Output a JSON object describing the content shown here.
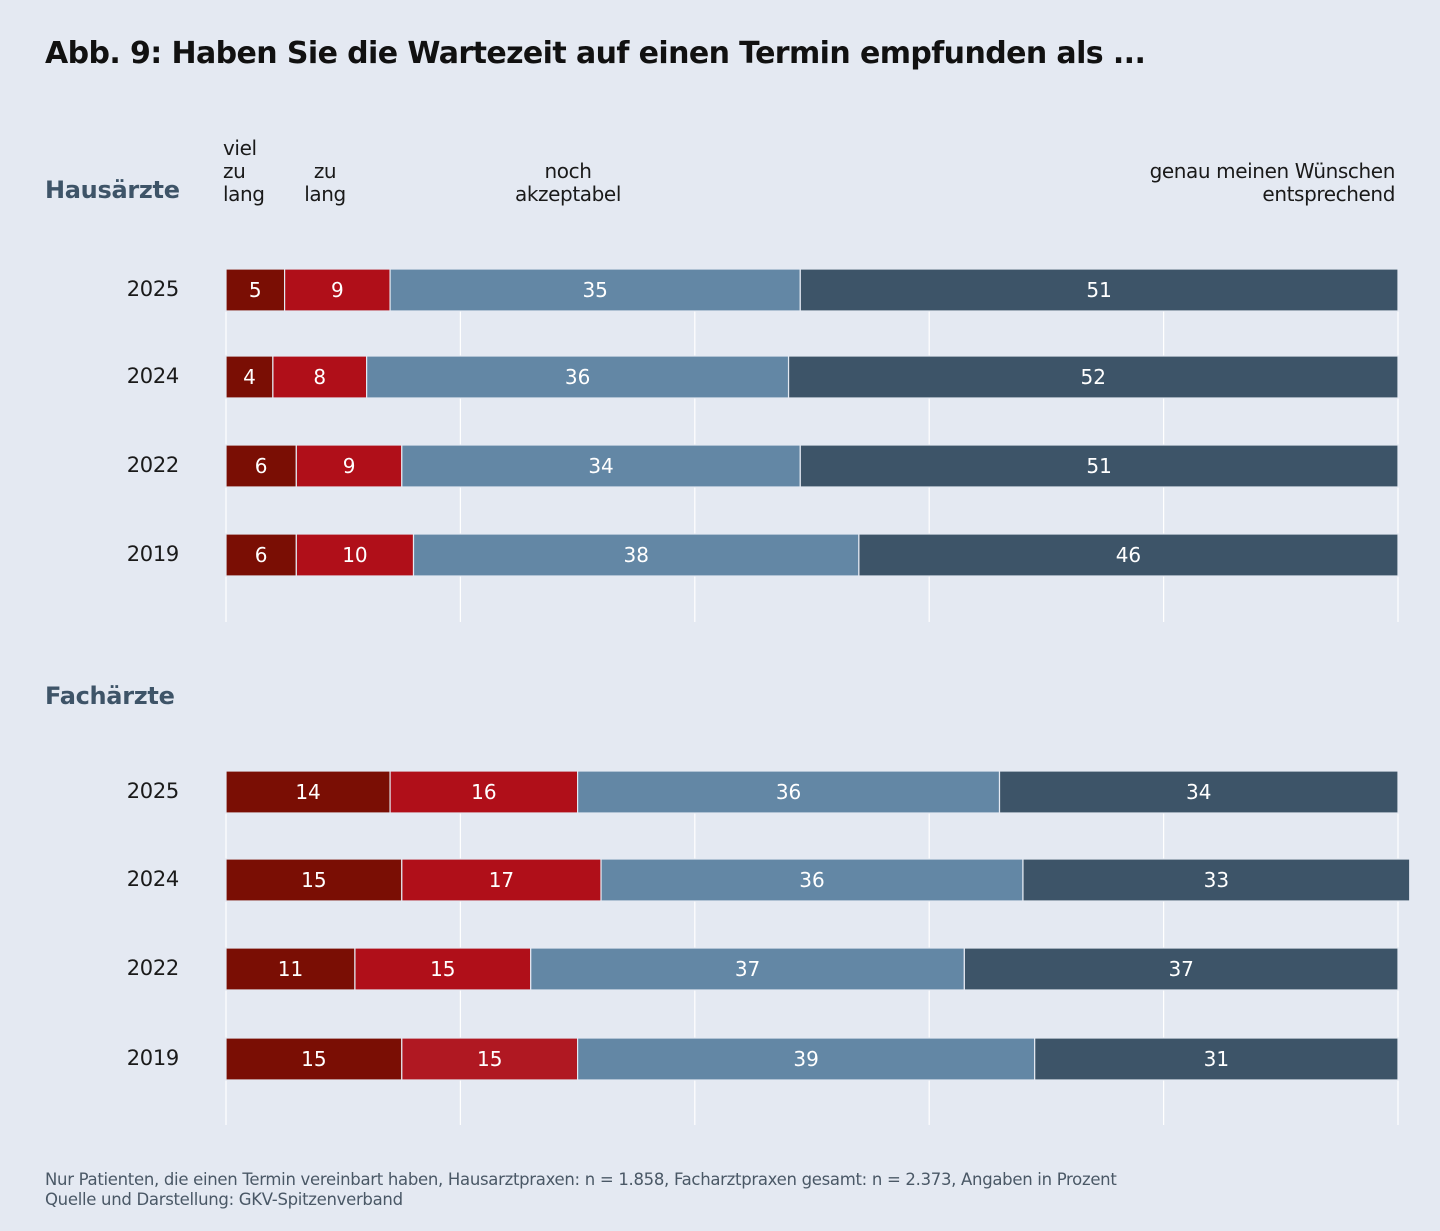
{
  "title": "Abb. 9: Haben Sie die Wartezeit auf einen Termin empfunden als ...",
  "legend_labels": [
    {
      "key": "viel_zu_lang",
      "lines": [
        "viel",
        "zu",
        "lang"
      ]
    },
    {
      "key": "zu_lang",
      "lines": [
        "zu",
        "lang"
      ]
    },
    {
      "key": "noch_akzeptabel",
      "lines": [
        "noch",
        "akzeptabel"
      ]
    },
    {
      "key": "genau",
      "lines": [
        "genau meinen Wünschen",
        "entsprechend"
      ]
    }
  ],
  "footnote": {
    "line1": "Nur Patienten, die einen Termin vereinbart haben, Hausarztpraxen: n = 1.858, Facharztpraxen gesamt: n = 2.373, Angaben in Prozent",
    "line2": "Quelle und Darstellung: GKV-Spitzenverband"
  },
  "colors": {
    "viel_zu_lang": "#7a0e04",
    "zu_lang": "#b00f19",
    "zu_lang_2019_fach": "#b01822",
    "noch_akzeptabel": "#6387a5",
    "genau": "#3d5468",
    "gridline": "#ffffff",
    "background": "#e4e9f2",
    "group_label": "#3e5468"
  },
  "chart_data": {
    "type": "bar",
    "orientation": "horizontal",
    "stacked": true,
    "title": "Abb. 9: Haben Sie die Wartezeit auf einen Termin empfunden als ...",
    "xlabel": "",
    "ylabel": "",
    "xlim": [
      0,
      100
    ],
    "x_gridlines": [
      0,
      20,
      40,
      60,
      80,
      100
    ],
    "grid": true,
    "legend_placement": "top",
    "unit": "Prozent",
    "series_names": [
      "viel zu lang",
      "zu lang",
      "noch akzeptabel",
      "genau meinen Wünschen entsprechend"
    ],
    "groups": [
      {
        "name": "Hausärzte",
        "categories": [
          "2025",
          "2024",
          "2022",
          "2019"
        ],
        "series": [
          {
            "name": "viel zu lang",
            "values": [
              5,
              4,
              6,
              6
            ]
          },
          {
            "name": "zu lang",
            "values": [
              9,
              8,
              9,
              10
            ]
          },
          {
            "name": "noch akzeptabel",
            "values": [
              35,
              36,
              34,
              38
            ]
          },
          {
            "name": "genau meinen Wünschen entsprechend",
            "values": [
              51,
              52,
              51,
              46
            ]
          }
        ]
      },
      {
        "name": "Fachärzte",
        "categories": [
          "2025",
          "2024",
          "2022",
          "2019"
        ],
        "series": [
          {
            "name": "viel zu lang",
            "values": [
              14,
              15,
              11,
              15
            ]
          },
          {
            "name": "zu lang",
            "values": [
              16,
              17,
              15,
              15
            ]
          },
          {
            "name": "noch akzeptabel",
            "values": [
              36,
              36,
              37,
              39
            ]
          },
          {
            "name": "genau meinen Wünschen entsprechend",
            "values": [
              34,
              33,
              37,
              31
            ]
          }
        ]
      }
    ]
  }
}
